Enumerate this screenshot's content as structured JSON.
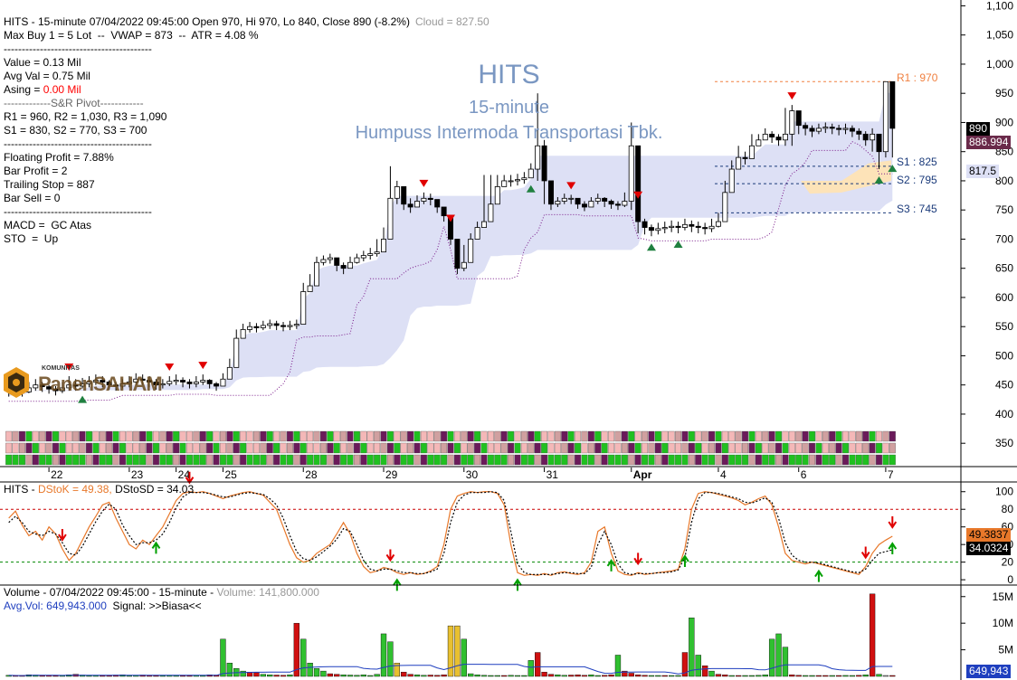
{
  "header": {
    "line1": "HITS - 15-minute 07/04/2022 09:45:00 Open 970, Hi 970, Lo 840, Close 890 (-8.2%)",
    "line1_extra": "Cloud = 827.50",
    "line2": "Max Buy 1 = 5 Lot  --  VWAP = 873  --  ATR = 4.08 %",
    "sep": "-----------------------------------------",
    "value": "Value = 0.13 Mil",
    "avgval": "Avg Val = 0.75 Mil",
    "asing_label": "Asing = ",
    "asing_value": "0.00 Mil",
    "pivot_title": "-------------S&R Pivot------------",
    "r_line": "R1 = 960, R2 = 1,030, R3 = 1,090",
    "s_line": "S1 = 830, S2 = 770, S3 = 700",
    "floating": "Floating Profit = 7.88%",
    "barprofit": "Bar Profit = 2",
    "trailing": "Trailing Stop = 887",
    "barsell": "Bar Sell = 0",
    "macd": "MACD =  GC Atas",
    "sto": "STO  =  Up"
  },
  "watermark": {
    "ticker": "HITS",
    "interval": "15-minute",
    "company": "Humpuss Intermoda Transportasi Tbk."
  },
  "logo": {
    "top": "KOMUNITAS",
    "main": "PanenSAHAM"
  },
  "levels": {
    "r1": "R1 : 970",
    "s1": "S1 : 825",
    "s2": "S2 : 795",
    "s3": "S3 : 745"
  },
  "price_tags": {
    "close": "890",
    "cloud": "886.994",
    "cloud2": "817.5"
  },
  "stoch": {
    "title": "HITS - ",
    "stok": "DStoK = 49.38,",
    "stosd": " DStoSD = 34.03",
    "tag_k": "49.3837",
    "tag_d": "34.0324"
  },
  "volume": {
    "title": "Volume - 07/04/2022 09:45:00 - 15-minute - ",
    "vol_value": "Volume: 141,800.000",
    "avg": "Avg.Vol: 649,943.000",
    "signal": "  Signal: >>Biasa<<",
    "tag": "649,943"
  },
  "colors": {
    "up": "#00c000",
    "down": "#e00000",
    "cloud_blue": "#dde0f5",
    "cloud_orange": "#fde3b8",
    "stok": "#e8782a",
    "stosd": "#000000",
    "level80": "#cc0000",
    "level20": "#008800",
    "watermark": "#7a97c2",
    "asing": "#ff0000",
    "avgvol": "#1f3fbf"
  },
  "chart_data": [
    {
      "type": "candlestick",
      "title": "HITS",
      "ylim": [
        310,
        1110
      ],
      "y_ticks": [
        1100,
        1050,
        1000,
        950,
        900,
        850,
        800,
        750,
        700,
        650,
        600,
        550,
        500,
        450,
        400,
        350
      ],
      "y_tick_labels": [
        "1,100",
        "1,050",
        "1,000",
        "950",
        "900",
        "850",
        "800",
        "750",
        "700",
        "650",
        "600",
        "550",
        "500",
        "450",
        "400",
        "350"
      ],
      "x_labels": [
        "22",
        "23",
        "24",
        "25",
        "28",
        "29",
        "30",
        "31",
        "Apr",
        "4",
        "6",
        "7"
      ],
      "x_label_bar_index": [
        6,
        18,
        25,
        32,
        44,
        56,
        68,
        80,
        93,
        106,
        118,
        131
      ],
      "closes": [
        440,
        442,
        438,
        445,
        450,
        447,
        443,
        440,
        445,
        450,
        448,
        452,
        455,
        458,
        455,
        450,
        448,
        452,
        455,
        460,
        458,
        455,
        450,
        452,
        456,
        458,
        455,
        452,
        455,
        458,
        452,
        448,
        460,
        480,
        530,
        545,
        550,
        548,
        552,
        555,
        552,
        550,
        552,
        554,
        610,
        620,
        660,
        665,
        668,
        655,
        650,
        660,
        668,
        672,
        675,
        678,
        700,
        770,
        790,
        760,
        755,
        765,
        770,
        768,
        755,
        740,
        700,
        650,
        660,
        700,
        720,
        730,
        760,
        790,
        800,
        800,
        802,
        805,
        820,
        860,
        800,
        760,
        765,
        770,
        770,
        760,
        755,
        765,
        770,
        765,
        760,
        758,
        765,
        860,
        730,
        720,
        715,
        718,
        720,
        722,
        720,
        725,
        722,
        720,
        718,
        722,
        730,
        780,
        820,
        840,
        838,
        860,
        870,
        880,
        875,
        870,
        880,
        920,
        895,
        890,
        885,
        890,
        892,
        890,
        888,
        890,
        885,
        880,
        870,
        880,
        850,
        970,
        890
      ],
      "highs": [
        450,
        450,
        448,
        455,
        460,
        455,
        450,
        448,
        455,
        465,
        460,
        462,
        465,
        468,
        465,
        458,
        455,
        460,
        465,
        470,
        468,
        465,
        460,
        460,
        465,
        468,
        463,
        460,
        465,
        468,
        460,
        455,
        470,
        495,
        545,
        555,
        558,
        556,
        560,
        562,
        560,
        558,
        560,
        562,
        625,
        640,
        670,
        672,
        675,
        668,
        660,
        670,
        675,
        680,
        685,
        700,
        720,
        825,
        800,
        780,
        770,
        775,
        780,
        778,
        768,
        755,
        720,
        665,
        690,
        710,
        730,
        810,
        810,
        810,
        810,
        810,
        812,
        815,
        830,
        950,
        870,
        780,
        772,
        778,
        776,
        770,
        765,
        772,
        778,
        772,
        768,
        765,
        780,
        900,
        760,
        735,
        725,
        728,
        730,
        732,
        730,
        735,
        732,
        730,
        728,
        735,
        745,
        800,
        835,
        860,
        850,
        880,
        880,
        890,
        885,
        880,
        925,
        930,
        905,
        900,
        895,
        898,
        900,
        898,
        896,
        898,
        895,
        890,
        885,
        890,
        860,
        970,
        970
      ],
      "lows": [
        430,
        432,
        430,
        436,
        440,
        438,
        435,
        432,
        436,
        440,
        440,
        444,
        446,
        450,
        446,
        442,
        440,
        444,
        446,
        450,
        450,
        446,
        442,
        444,
        448,
        450,
        446,
        444,
        446,
        450,
        444,
        440,
        450,
        460,
        480,
        535,
        540,
        540,
        544,
        546,
        544,
        542,
        544,
        546,
        595,
        610,
        650,
        655,
        658,
        645,
        640,
        650,
        658,
        662,
        665,
        670,
        690,
        760,
        760,
        750,
        745,
        755,
        760,
        758,
        745,
        730,
        690,
        640,
        645,
        690,
        710,
        720,
        750,
        780,
        790,
        790,
        792,
        795,
        805,
        800,
        760,
        750,
        755,
        760,
        760,
        752,
        748,
        755,
        760,
        755,
        752,
        750,
        755,
        750,
        710,
        708,
        705,
        708,
        710,
        712,
        710,
        715,
        712,
        710,
        708,
        712,
        720,
        760,
        800,
        820,
        828,
        840,
        860,
        870,
        865,
        860,
        860,
        860,
        880,
        878,
        875,
        880,
        882,
        880,
        878,
        880,
        875,
        870,
        860,
        850,
        820,
        840,
        840
      ]
    },
    {
      "type": "line",
      "title": "HITS - DStoK / DStoSD",
      "ylim": [
        -5,
        110
      ],
      "y_ticks": [
        100,
        80,
        60,
        40,
        20,
        0
      ],
      "levels": [
        80,
        20
      ],
      "series": [
        {
          "name": "DStoK",
          "values": [
            70,
            78,
            62,
            50,
            55,
            45,
            60,
            52,
            35,
            22,
            30,
            45,
            60,
            72,
            85,
            88,
            70,
            55,
            40,
            35,
            45,
            40,
            50,
            60,
            75,
            90,
            98,
            100,
            99,
            100,
            98,
            95,
            92,
            95,
            97,
            99,
            100,
            98,
            96,
            88,
            80,
            60,
            40,
            25,
            20,
            22,
            30,
            35,
            40,
            52,
            65,
            52,
            30,
            15,
            8,
            10,
            14,
            12,
            8,
            6,
            8,
            6,
            7,
            10,
            15,
            40,
            80,
            95,
            98,
            100,
            99,
            100,
            100,
            98,
            85,
            40,
            8,
            5,
            6,
            5,
            7,
            5,
            8,
            9,
            7,
            6,
            8,
            20,
            55,
            60,
            30,
            10,
            6,
            5,
            8,
            6,
            7,
            8,
            9,
            10,
            12,
            35,
            80,
            98,
            100,
            99,
            97,
            95,
            93,
            90,
            85,
            88,
            92,
            95,
            85,
            60,
            30,
            22,
            20,
            18,
            20,
            18,
            16,
            14,
            12,
            10,
            8,
            6,
            15,
            30,
            40,
            45,
            49.38
          ]
        },
        {
          "name": "DStoSD",
          "values": [
            65,
            72,
            65,
            55,
            52,
            50,
            55,
            52,
            42,
            30,
            28,
            38,
            52,
            66,
            78,
            86,
            80,
            62,
            50,
            40,
            42,
            42,
            45,
            52,
            65,
            82,
            94,
            99,
            99,
            99,
            98,
            96,
            94,
            94,
            96,
            98,
            99,
            98,
            97,
            92,
            85,
            70,
            50,
            32,
            24,
            22,
            26,
            32,
            38,
            46,
            58,
            55,
            40,
            22,
            12,
            10,
            12,
            12,
            10,
            8,
            8,
            7,
            7,
            9,
            12,
            30,
            65,
            88,
            96,
            99,
            99,
            99,
            100,
            99,
            90,
            55,
            18,
            8,
            6,
            6,
            6,
            6,
            7,
            8,
            8,
            7,
            7,
            14,
            40,
            55,
            40,
            18,
            8,
            6,
            7,
            7,
            7,
            8,
            8,
            9,
            11,
            25,
            65,
            92,
            99,
            99,
            98,
            96,
            94,
            92,
            88,
            87,
            90,
            93,
            88,
            70,
            42,
            28,
            22,
            20,
            20,
            19,
            17,
            15,
            13,
            11,
            9,
            8,
            12,
            22,
            30,
            32,
            34.03
          ]
        }
      ]
    },
    {
      "type": "bar",
      "title": "Volume",
      "ylim": [
        0,
        17000000
      ],
      "y_ticks": [
        15000000,
        10000000,
        5000000
      ],
      "y_tick_labels": [
        "15M",
        "10M",
        "5M"
      ],
      "avg_volume": 649943,
      "values": [
        200000,
        150000,
        120000,
        300000,
        250000,
        180000,
        220000,
        150000,
        160000,
        300000,
        400000,
        250000,
        150000,
        200000,
        180000,
        160000,
        250000,
        300000,
        150000,
        200000,
        250000,
        180000,
        150000,
        160000,
        200000,
        180000,
        150000,
        160000,
        200000,
        150000,
        300000,
        250000,
        7000000,
        2500000,
        1500000,
        1000000,
        800000,
        700000,
        400000,
        300000,
        250000,
        200000,
        300000,
        10000000,
        7000000,
        2500000,
        1500000,
        1000000,
        500000,
        400000,
        300000,
        250000,
        200000,
        300000,
        150000,
        400000,
        8000000,
        6500000,
        2500000,
        800000,
        400000,
        300000,
        200000,
        250000,
        200000,
        300000,
        9500000,
        9500000,
        7000000,
        500000,
        300000,
        200000,
        150000,
        100000,
        100000,
        200000,
        100000,
        150000,
        3000000,
        4500000,
        800000,
        400000,
        300000,
        200000,
        250000,
        300000,
        200000,
        300000,
        150000,
        200000,
        300000,
        4000000,
        1000000,
        600000,
        300000,
        200000,
        100000,
        150000,
        100000,
        100000,
        50000,
        4500000,
        11000000,
        4000000,
        2000000,
        1000000,
        400000,
        300000,
        150000,
        100000,
        150000,
        100000,
        200000,
        300000,
        7000000,
        8000000,
        5500000,
        300000,
        200000,
        150000,
        100000,
        120000,
        100000,
        150000,
        100000,
        180000,
        150000,
        200000,
        300000,
        15500000,
        400000,
        150000,
        141800
      ],
      "colors": [
        "g",
        "r",
        "r",
        "g",
        "g",
        "r",
        "r",
        "r",
        "g",
        "g",
        "r",
        "g",
        "g",
        "g",
        "r",
        "r",
        "r",
        "g",
        "g",
        "g",
        "r",
        "r",
        "r",
        "g",
        "g",
        "g",
        "r",
        "r",
        "g",
        "g",
        "r",
        "r",
        "g",
        "g",
        "g",
        "g",
        "r",
        "r",
        "g",
        "g",
        "r",
        "r",
        "g",
        "r",
        "g",
        "g",
        "g",
        "g",
        "r",
        "r",
        "g",
        "g",
        "g",
        "g",
        "g",
        "g",
        "g",
        "g",
        "y",
        "r",
        "r",
        "g",
        "g",
        "r",
        "r",
        "r",
        "y",
        "y",
        "g",
        "g",
        "g",
        "g",
        "g",
        "g",
        "r",
        "g",
        "g",
        "g",
        "g",
        "r",
        "r",
        "r",
        "g",
        "g",
        "r",
        "r",
        "r",
        "g",
        "g",
        "r",
        "r",
        "g",
        "r",
        "r",
        "r",
        "r",
        "g",
        "g",
        "r",
        "g",
        "g",
        "r",
        "g",
        "g",
        "r",
        "g",
        "r",
        "r",
        "g",
        "r",
        "g",
        "g",
        "g",
        "g",
        "g",
        "g",
        "g",
        "r",
        "r",
        "g",
        "g",
        "r",
        "r",
        "g",
        "r",
        "g",
        "g",
        "r",
        "g",
        "r",
        "g",
        "x",
        "r",
        "g",
        "r"
      ]
    }
  ]
}
